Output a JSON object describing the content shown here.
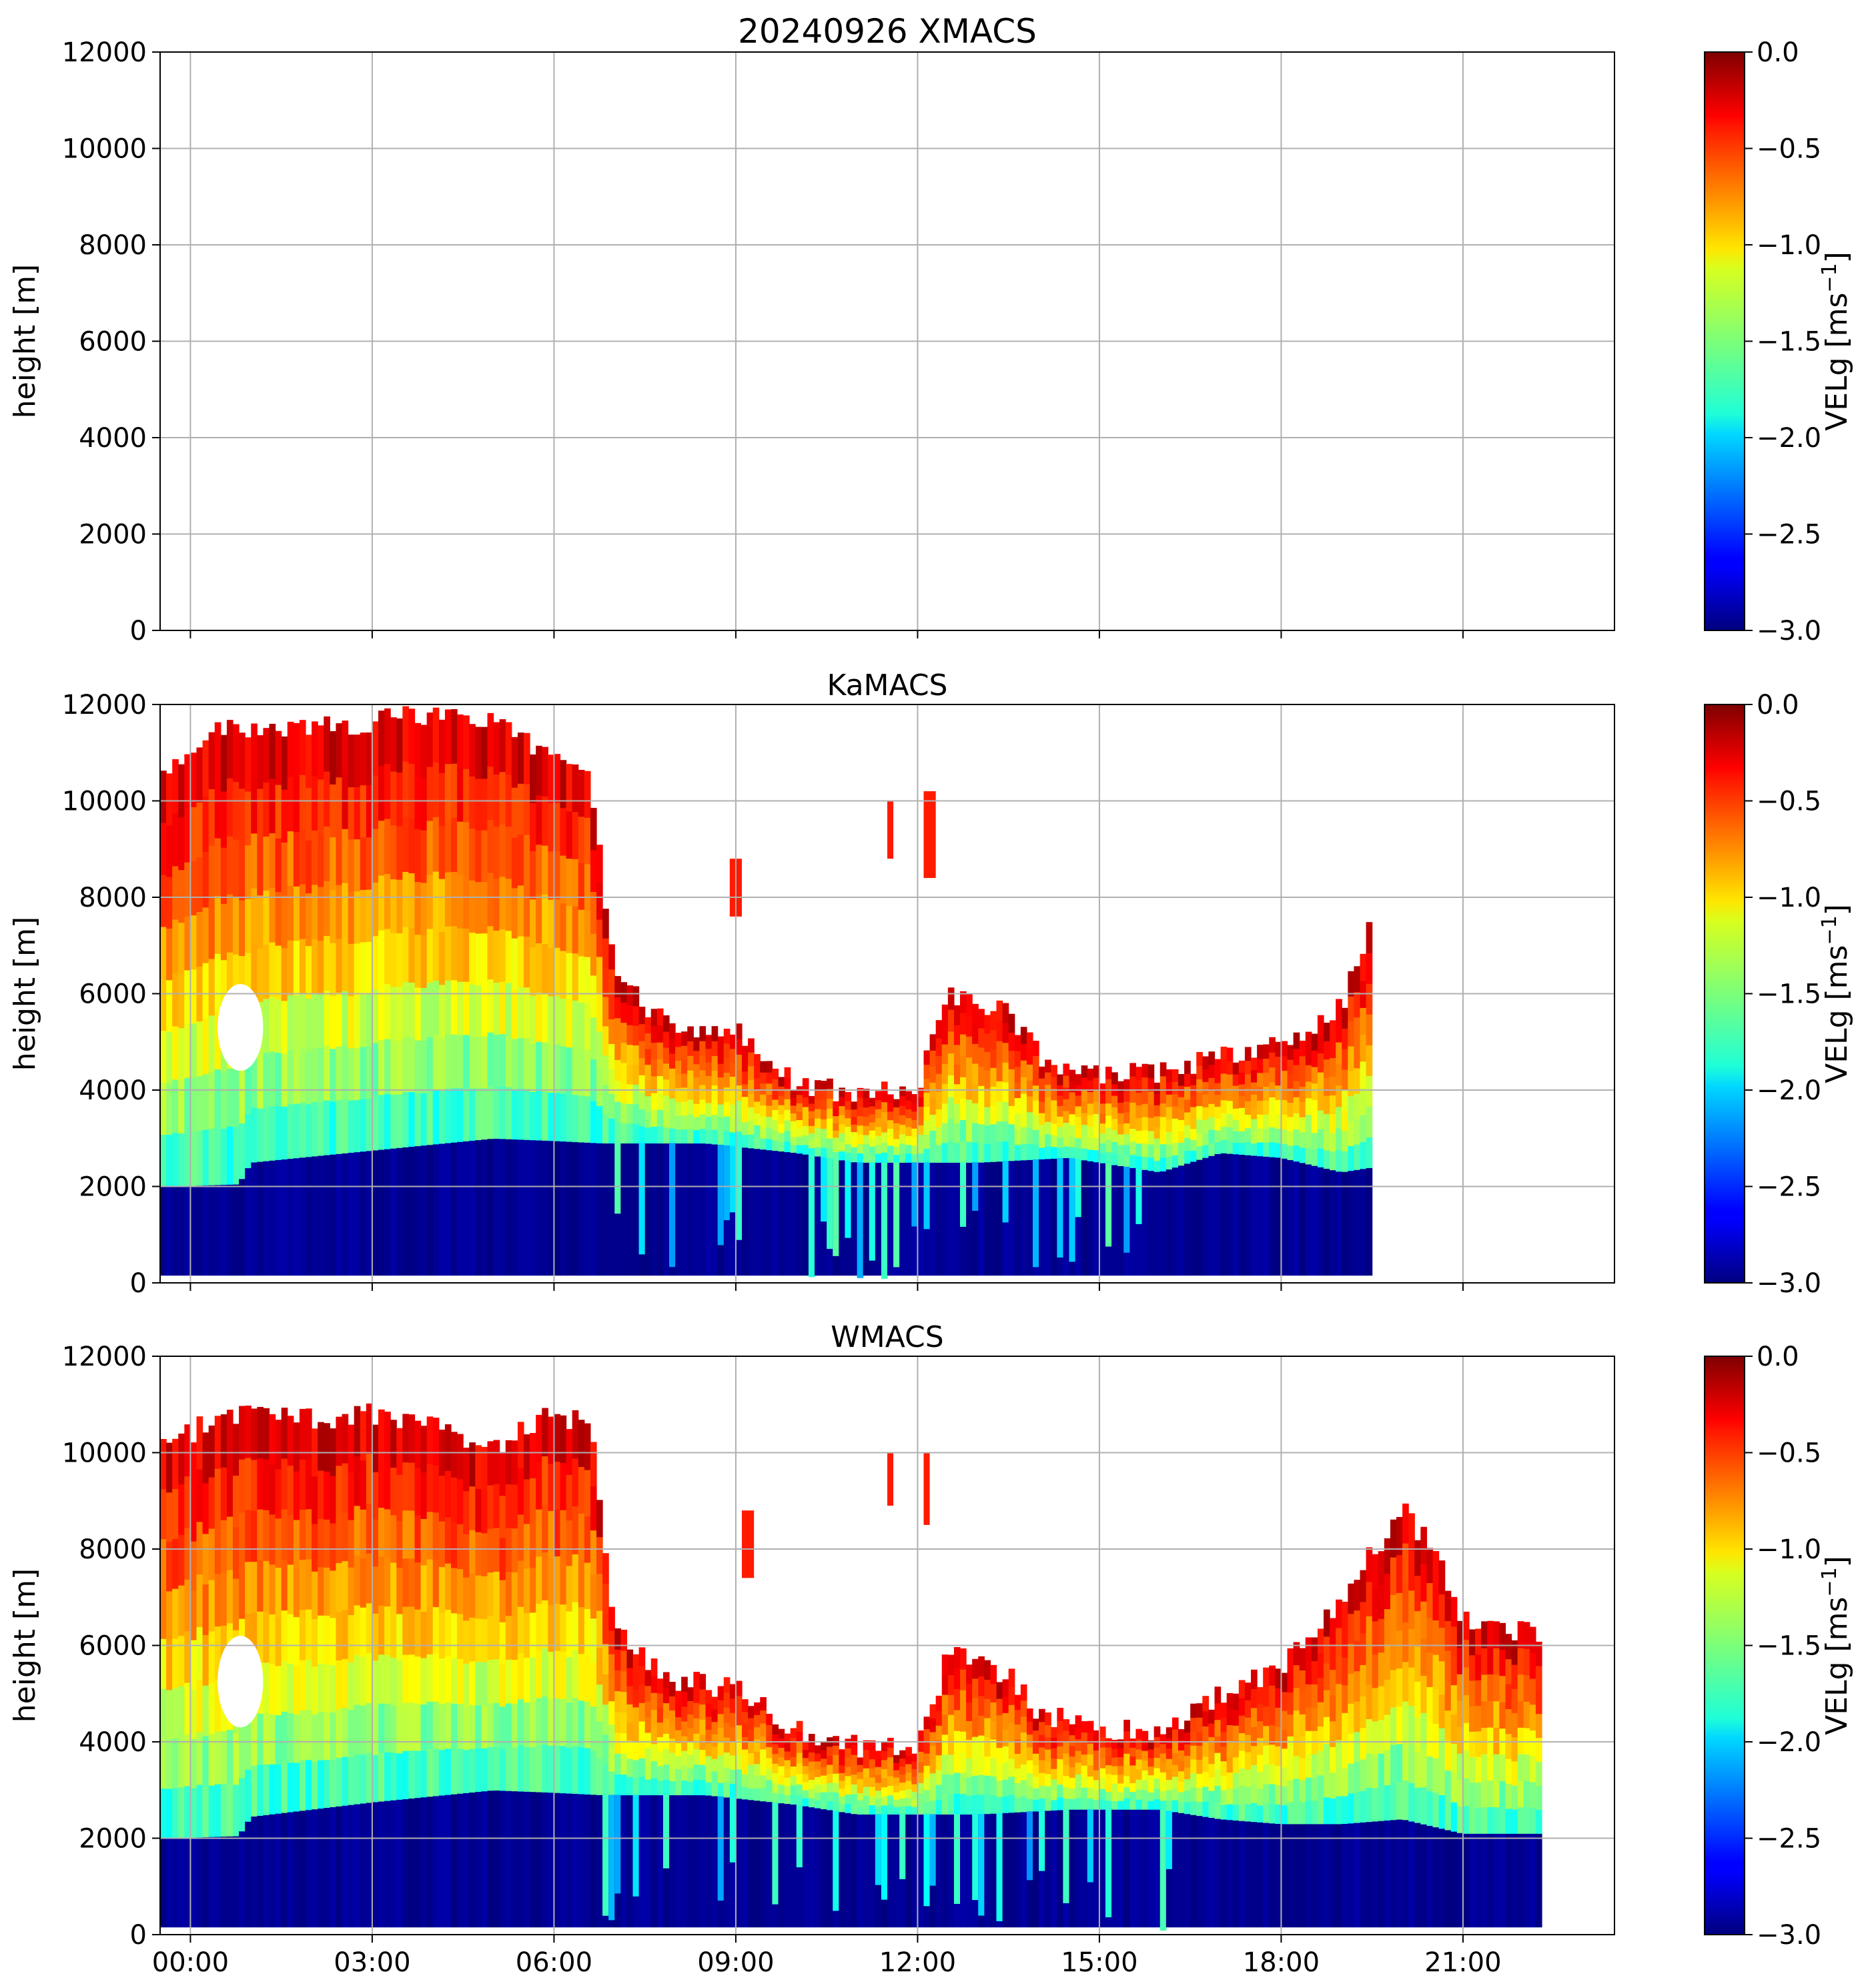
{
  "figure": {
    "panels": [
      {
        "title": "20240926 XMACS",
        "ylabel": "height [m]",
        "cbar_label": "VELg [ms",
        "cbar_label_sup": "−1",
        "cbar_label_end": "]",
        "has_data": false
      },
      {
        "title": "KaMACS",
        "ylabel": "height [m]",
        "cbar_label": "VELg [ms",
        "cbar_label_sup": "−1",
        "cbar_label_end": "]",
        "has_data": true
      },
      {
        "title": "WMACS",
        "ylabel": "height [m]",
        "cbar_label": "VELg [ms",
        "cbar_label_sup": "−1",
        "cbar_label_end": "]",
        "has_data": true
      }
    ],
    "colormap": "jet"
  },
  "chart_data": [
    {
      "type": "heatmap",
      "title": "20240926 XMACS",
      "ylabel": "height [m]",
      "ylim": [
        0,
        12000
      ],
      "yticks": [
        "0",
        "2000",
        "4000",
        "6000",
        "8000",
        "10000",
        "12000"
      ],
      "xlim_hours": [
        -0.5,
        23.5
      ],
      "xticks": [
        "00:00",
        "03:00",
        "06:00",
        "09:00",
        "12:00",
        "15:00",
        "18:00",
        "21:00"
      ],
      "colorbar": {
        "label": "VELg [ms−1]",
        "range": [
          -3.0,
          0.0
        ],
        "ticks": [
          "0.0",
          "−0.5",
          "−1.0",
          "−1.5",
          "−2.0",
          "−2.5",
          "−3.0"
        ]
      },
      "grid": true,
      "data": "none"
    },
    {
      "type": "heatmap",
      "title": "KaMACS",
      "ylabel": "height [m]",
      "ylim": [
        0,
        12000
      ],
      "yticks": [
        "0",
        "2000",
        "4000",
        "6000",
        "8000",
        "10000",
        "12000"
      ],
      "xlim_hours": [
        -0.5,
        23.5
      ],
      "xticks": [
        "00:00",
        "03:00",
        "06:00",
        "09:00",
        "12:00",
        "15:00",
        "18:00",
        "21:00"
      ],
      "colorbar": {
        "label": "VELg [ms−1]",
        "range": [
          -3.0,
          0.0
        ],
        "ticks": [
          "0.0",
          "−0.5",
          "−1.0",
          "−1.5",
          "−2.0",
          "−2.5",
          "−3.0"
        ]
      },
      "grid": true,
      "data_end_hour": 19.5,
      "cloud_top_m": [
        [
          -0.5,
          10500
        ],
        [
          0.5,
          11500
        ],
        [
          2,
          11500
        ],
        [
          4,
          11800
        ],
        [
          5,
          11600
        ],
        [
          6,
          10900
        ],
        [
          6.6,
          10500
        ],
        [
          7,
          6500
        ],
        [
          7.5,
          5700
        ],
        [
          8,
          5400
        ],
        [
          9,
          5200
        ],
        [
          10,
          4200
        ],
        [
          11,
          3900
        ],
        [
          12,
          4000
        ],
        [
          12.5,
          6000
        ],
        [
          13.5,
          5600
        ],
        [
          14,
          4700
        ],
        [
          15,
          4300
        ],
        [
          16,
          4400
        ],
        [
          17,
          4700
        ],
        [
          18,
          5000
        ],
        [
          19,
          5700
        ],
        [
          19.5,
          7500
        ]
      ],
      "rain_top_m": [
        [
          -0.5,
          2000
        ],
        [
          0.8,
          2050
        ],
        [
          1.0,
          2500
        ],
        [
          3,
          2750
        ],
        [
          5,
          3000
        ],
        [
          6,
          2950
        ],
        [
          6.8,
          2900
        ],
        [
          7.5,
          2900
        ],
        [
          8.5,
          2900
        ],
        [
          10,
          2700
        ],
        [
          11,
          2500
        ],
        [
          12,
          2500
        ],
        [
          13,
          2500
        ],
        [
          14.5,
          2600
        ],
        [
          16,
          2300
        ],
        [
          17,
          2700
        ],
        [
          18,
          2600
        ],
        [
          19,
          2300
        ],
        [
          19.5,
          2400
        ]
      ],
      "velocity_profile_ms": {
        "cloud_top": -0.2,
        "mid_cloud": -0.9,
        "cloud_base": -1.8,
        "rain": -3.0
      },
      "features": [
        {
          "label": "gap",
          "hours": [
            0.45,
            1.2
          ],
          "height_m": [
            4400,
            6200
          ]
        },
        {
          "label": "isolated cell",
          "hours": [
            8.9,
            9.1
          ],
          "height_m": [
            7600,
            8800
          ]
        },
        {
          "label": "isolated cell",
          "hours": [
            11.5,
            11.6
          ],
          "height_m": [
            8800,
            10000
          ]
        },
        {
          "label": "isolated cell",
          "hours": [
            12.1,
            12.3
          ],
          "height_m": [
            8400,
            10200
          ]
        }
      ]
    },
    {
      "type": "heatmap",
      "title": "WMACS",
      "ylabel": "height [m]",
      "ylim": [
        0,
        12000
      ],
      "yticks": [
        "0",
        "2000",
        "4000",
        "6000",
        "8000",
        "10000",
        "12000"
      ],
      "xlim_hours": [
        -0.5,
        23.5
      ],
      "xticks": [
        "00:00",
        "03:00",
        "06:00",
        "09:00",
        "12:00",
        "15:00",
        "18:00",
        "21:00"
      ],
      "colorbar": {
        "label": "VELg [ms−1]",
        "range": [
          -3.0,
          0.0
        ],
        "ticks": [
          "0.0",
          "−0.5",
          "−1.0",
          "−1.5",
          "−2.0",
          "−2.5",
          "−3.0"
        ]
      },
      "grid": true,
      "data_end_hour": 22.3,
      "cloud_top_m": [
        [
          -0.5,
          10000
        ],
        [
          0.5,
          10800
        ],
        [
          2,
          10700
        ],
        [
          3,
          10800
        ],
        [
          4,
          10500
        ],
        [
          5,
          10100
        ],
        [
          6,
          10900
        ],
        [
          6.6,
          10500
        ],
        [
          7,
          6500
        ],
        [
          7.5,
          5700
        ],
        [
          8,
          5300
        ],
        [
          9,
          5100
        ],
        [
          10,
          4200
        ],
        [
          11,
          3900
        ],
        [
          12,
          3800
        ],
        [
          12.5,
          5800
        ],
        [
          13.5,
          5400
        ],
        [
          14,
          4600
        ],
        [
          15,
          4300
        ],
        [
          16,
          4200
        ],
        [
          17,
          5000
        ],
        [
          18,
          5500
        ],
        [
          19,
          7000
        ],
        [
          20,
          8800
        ],
        [
          20.5,
          8000
        ],
        [
          21,
          6600
        ],
        [
          22,
          6300
        ],
        [
          22.3,
          6000
        ]
      ],
      "rain_top_m": [
        [
          -0.5,
          2000
        ],
        [
          0.8,
          2050
        ],
        [
          1.0,
          2450
        ],
        [
          3,
          2750
        ],
        [
          5,
          3000
        ],
        [
          6,
          2950
        ],
        [
          6.8,
          2900
        ],
        [
          7.5,
          2900
        ],
        [
          8.5,
          2900
        ],
        [
          10,
          2700
        ],
        [
          11,
          2500
        ],
        [
          12,
          2500
        ],
        [
          13,
          2500
        ],
        [
          14.5,
          2600
        ],
        [
          16,
          2600
        ],
        [
          17,
          2400
        ],
        [
          18,
          2300
        ],
        [
          19,
          2300
        ],
        [
          20,
          2400
        ],
        [
          21,
          2100
        ],
        [
          21.5,
          2100
        ]
      ],
      "velocity_profile_ms": {
        "cloud_top": -0.2,
        "mid_cloud": -0.9,
        "cloud_base": -1.8,
        "rain": -3.0
      },
      "features": [
        {
          "label": "gap",
          "hours": [
            0.45,
            1.2
          ],
          "height_m": [
            4300,
            6200
          ]
        },
        {
          "label": "isolated cell",
          "hours": [
            9.1,
            9.3
          ],
          "height_m": [
            7400,
            8800
          ]
        },
        {
          "label": "isolated cell",
          "hours": [
            11.5,
            11.6
          ],
          "height_m": [
            8900,
            10000
          ]
        },
        {
          "label": "isolated cell",
          "hours": [
            12.1,
            12.2
          ],
          "height_m": [
            8500,
            10000
          ]
        }
      ]
    }
  ]
}
